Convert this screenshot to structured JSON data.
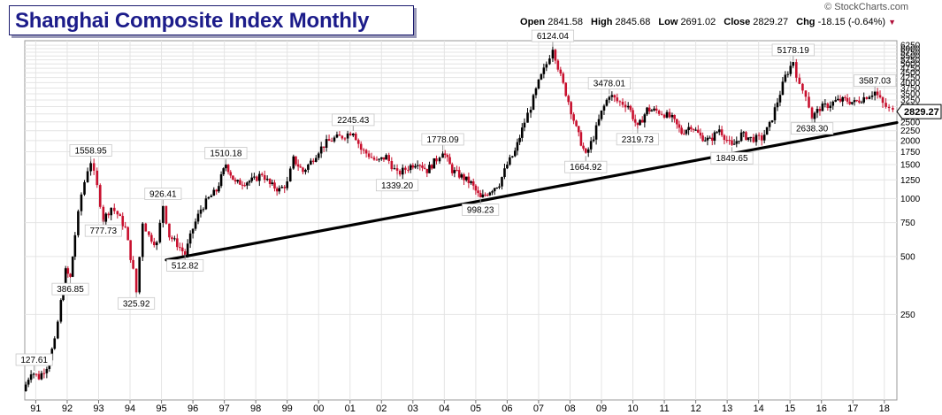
{
  "header": {
    "title": "Shanghai Composite Index Monthly",
    "brand": "© StockCharts.com",
    "ohlc": {
      "open_label": "Open",
      "open": "2841.58",
      "high_label": "High",
      "high": "2845.68",
      "low_label": "Low",
      "low": "2691.02",
      "close_label": "Close",
      "close": "2829.27",
      "chg_label": "Chg",
      "chg": "-18.15 (-0.64%)"
    }
  },
  "colors": {
    "up": "#000000",
    "down": "#c8102e",
    "trendline": "#000000",
    "title": "#1c1c8a"
  },
  "chart_data": {
    "type": "bar",
    "scale": "log",
    "grid": true,
    "x_tick_labels": [
      "91",
      "92",
      "93",
      "94",
      "95",
      "96",
      "97",
      "98",
      "99",
      "00",
      "01",
      "02",
      "03",
      "04",
      "05",
      "06",
      "07",
      "08",
      "09",
      "10",
      "11",
      "12",
      "13",
      "14",
      "15",
      "16",
      "17",
      "18"
    ],
    "x_range": [
      1991.0,
      2018.75
    ],
    "y_tick_labels": [
      250,
      500,
      750,
      1000,
      1250,
      1500,
      1750,
      2000,
      2250,
      2500,
      2750,
      3000,
      3250,
      3500,
      3750,
      4000,
      4250,
      4500,
      4750,
      5000,
      5250,
      5500,
      5750,
      6000,
      6250
    ],
    "y_range": [
      90,
      6600
    ],
    "last_value": "2829.27",
    "annotations": [
      {
        "label": "127.61",
        "x": 1991.3,
        "y": 127.61
      },
      {
        "label": "386.85",
        "x": 1992.45,
        "y": 386.85
      },
      {
        "label": "1558.95",
        "x": 1993.1,
        "y": 1558.95
      },
      {
        "label": "777.73",
        "x": 1993.5,
        "y": 777.73
      },
      {
        "label": "325.92",
        "x": 1994.55,
        "y": 325.92
      },
      {
        "label": "926.41",
        "x": 1995.4,
        "y": 926.41
      },
      {
        "label": "512.82",
        "x": 1996.1,
        "y": 512.82
      },
      {
        "label": "1510.18",
        "x": 1997.4,
        "y": 1510.18
      },
      {
        "label": "2245.43",
        "x": 2001.45,
        "y": 2245.43
      },
      {
        "label": "1339.20",
        "x": 2002.85,
        "y": 1339.2
      },
      {
        "label": "1778.09",
        "x": 2004.3,
        "y": 1778.09
      },
      {
        "label": "998.23",
        "x": 2005.5,
        "y": 998.23
      },
      {
        "label": "6124.04",
        "x": 2007.8,
        "y": 6124.04
      },
      {
        "label": "1664.92",
        "x": 2008.85,
        "y": 1664.92
      },
      {
        "label": "3478.01",
        "x": 2009.6,
        "y": 3478.01
      },
      {
        "label": "2319.73",
        "x": 2010.5,
        "y": 2319.73
      },
      {
        "label": "1849.65",
        "x": 2013.5,
        "y": 1849.65
      },
      {
        "label": "5178.19",
        "x": 2015.45,
        "y": 5178.19
      },
      {
        "label": "2638.30",
        "x": 2016.05,
        "y": 2638.3
      },
      {
        "label": "3587.03",
        "x": 2018.05,
        "y": 3587.03
      }
    ],
    "trendline": [
      {
        "x": 1995.5,
        "y": 480
      },
      {
        "x": 2018.75,
        "y": 2480
      }
    ],
    "series": [
      {
        "values": [
          [
            1990.95,
            100
          ],
          [
            1991.2,
            127
          ],
          [
            1991.45,
            118
          ],
          [
            1991.7,
            135
          ],
          [
            1991.95,
            180
          ],
          [
            1992.15,
            290
          ],
          [
            1992.3,
            420
          ],
          [
            1992.45,
            386.85
          ],
          [
            1992.6,
            650
          ],
          [
            1992.8,
            1050
          ],
          [
            1993.0,
            1420
          ],
          [
            1993.1,
            1558.95
          ],
          [
            1993.3,
            1150
          ],
          [
            1993.5,
            777.73
          ],
          [
            1993.75,
            900
          ],
          [
            1993.95,
            830
          ],
          [
            1994.2,
            700
          ],
          [
            1994.45,
            420
          ],
          [
            1994.55,
            325.92
          ],
          [
            1994.75,
            760
          ],
          [
            1994.95,
            640
          ],
          [
            1995.2,
            580
          ],
          [
            1995.4,
            926.41
          ],
          [
            1995.6,
            640
          ],
          [
            1995.85,
            580
          ],
          [
            1996.1,
            512.82
          ],
          [
            1996.35,
            700
          ],
          [
            1996.6,
            880
          ],
          [
            1996.85,
            1000
          ],
          [
            1997.1,
            1100
          ],
          [
            1997.4,
            1510.18
          ],
          [
            1997.7,
            1200
          ],
          [
            1998.0,
            1220
          ],
          [
            1998.3,
            1250
          ],
          [
            1998.55,
            1350
          ],
          [
            1998.8,
            1180
          ],
          [
            1999.1,
            1110
          ],
          [
            1999.35,
            1200
          ],
          [
            1999.55,
            1600
          ],
          [
            1999.85,
            1380
          ],
          [
            2000.1,
            1550
          ],
          [
            2000.35,
            1780
          ],
          [
            2000.6,
            1950
          ],
          [
            2000.85,
            2050
          ],
          [
            2001.1,
            2100
          ],
          [
            2001.45,
            2245.43
          ],
          [
            2001.7,
            1800
          ],
          [
            2001.95,
            1680
          ],
          [
            2002.2,
            1550
          ],
          [
            2002.5,
            1650
          ],
          [
            2002.85,
            1339.2
          ],
          [
            2003.2,
            1450
          ],
          [
            2003.5,
            1560
          ],
          [
            2003.8,
            1400
          ],
          [
            2004.1,
            1600
          ],
          [
            2004.3,
            1778.09
          ],
          [
            2004.6,
            1400
          ],
          [
            2004.9,
            1300
          ],
          [
            2005.2,
            1200
          ],
          [
            2005.5,
            998.23
          ],
          [
            2005.8,
            1100
          ],
          [
            2006.1,
            1200
          ],
          [
            2006.35,
            1500
          ],
          [
            2006.6,
            1750
          ],
          [
            2006.9,
            2500
          ],
          [
            2007.1,
            3000
          ],
          [
            2007.35,
            4000
          ],
          [
            2007.6,
            5000
          ],
          [
            2007.8,
            6124.04
          ],
          [
            2008.05,
            4300
          ],
          [
            2008.3,
            3200
          ],
          [
            2008.55,
            2300
          ],
          [
            2008.85,
            1664.92
          ],
          [
            2009.1,
            2100
          ],
          [
            2009.35,
            2800
          ],
          [
            2009.6,
            3478.01
          ],
          [
            2009.85,
            3200
          ],
          [
            2010.2,
            3050
          ],
          [
            2010.5,
            2319.73
          ],
          [
            2010.8,
            2900
          ],
          [
            2011.1,
            2850
          ],
          [
            2011.35,
            2750
          ],
          [
            2011.6,
            2600
          ],
          [
            2011.9,
            2200
          ],
          [
            2012.2,
            2400
          ],
          [
            2012.5,
            2100
          ],
          [
            2012.8,
            2000
          ],
          [
            2013.1,
            2300
          ],
          [
            2013.5,
            1849.65
          ],
          [
            2013.8,
            2150
          ],
          [
            2014.1,
            2050
          ],
          [
            2014.45,
            2050
          ],
          [
            2014.7,
            2400
          ],
          [
            2014.95,
            3200
          ],
          [
            2015.2,
            4300
          ],
          [
            2015.45,
            5178.19
          ],
          [
            2015.65,
            3800
          ],
          [
            2015.85,
            3500
          ],
          [
            2016.05,
            2638.3
          ],
          [
            2016.3,
            2950
          ],
          [
            2016.55,
            3050
          ],
          [
            2016.8,
            3200
          ],
          [
            2017.1,
            3250
          ],
          [
            2017.4,
            3150
          ],
          [
            2017.7,
            3350
          ],
          [
            2018.05,
            3587.03
          ],
          [
            2018.3,
            3100
          ],
          [
            2018.5,
            2900
          ],
          [
            2018.62,
            2829.27
          ]
        ]
      }
    ]
  }
}
